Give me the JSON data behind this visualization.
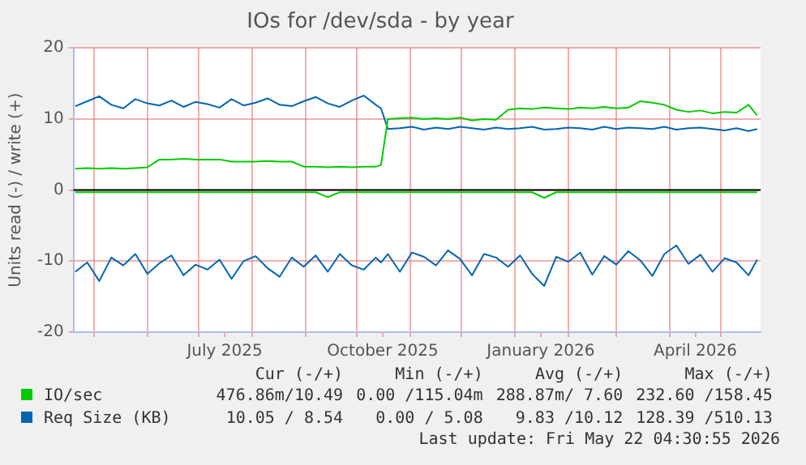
{
  "chart_data": {
    "type": "line",
    "title": "IOs for /dev/sda - by year",
    "ylabel": "Units read (-) / write (+)",
    "x": [
      "2025-04-20",
      "2025-04-27",
      "2025-05-04",
      "2025-05-11",
      "2025-05-18",
      "2025-05-25",
      "2025-06-01",
      "2025-06-08",
      "2025-06-15",
      "2025-06-22",
      "2025-06-29",
      "2025-07-06",
      "2025-07-13",
      "2025-07-20",
      "2025-07-27",
      "2025-08-03",
      "2025-08-10",
      "2025-08-17",
      "2025-08-24",
      "2025-08-31",
      "2025-09-07",
      "2025-09-14",
      "2025-09-21",
      "2025-09-28",
      "2025-10-05",
      "2025-10-12",
      "2025-10-15",
      "2025-10-19",
      "2025-10-26",
      "2025-11-02",
      "2025-11-09",
      "2025-11-16",
      "2025-11-23",
      "2025-11-30",
      "2025-12-07",
      "2025-12-14",
      "2025-12-21",
      "2025-12-28",
      "2026-01-04",
      "2026-01-11",
      "2026-01-18",
      "2026-01-25",
      "2026-02-01",
      "2026-02-08",
      "2026-02-15",
      "2026-02-22",
      "2026-03-01",
      "2026-03-08",
      "2026-03-15",
      "2026-03-22",
      "2026-03-29",
      "2026-04-05",
      "2026-04-12",
      "2026-04-19",
      "2026-04-26",
      "2026-05-03",
      "2026-05-10",
      "2026-05-17",
      "2026-05-22"
    ],
    "series": [
      {
        "name": "IO/sec",
        "color": "#00cc00",
        "values": [
          3.0,
          3.1,
          3.0,
          3.1,
          3.0,
          3.1,
          3.2,
          4.3,
          4.3,
          4.4,
          4.3,
          4.3,
          4.3,
          4.0,
          4.0,
          4.0,
          4.1,
          4.0,
          4.0,
          3.3,
          3.3,
          3.2,
          3.3,
          3.2,
          3.3,
          3.3,
          3.5,
          10.0,
          10.1,
          10.2,
          10.0,
          10.1,
          10.0,
          10.2,
          9.8,
          10.0,
          9.9,
          11.3,
          11.5,
          11.4,
          11.6,
          11.5,
          11.4,
          11.6,
          11.5,
          11.7,
          11.5,
          11.6,
          12.5,
          12.3,
          12.0,
          11.3,
          11.0,
          11.2,
          10.8,
          11.0,
          10.9,
          12.0,
          10.5
        ]
      },
      {
        "color": "#00cc00",
        "values": [
          -0.3,
          -0.3,
          -0.3,
          -0.3,
          -0.3,
          -0.3,
          -0.3,
          -0.3,
          -0.3,
          -0.3,
          -0.3,
          -0.3,
          -0.3,
          -0.3,
          -0.3,
          -0.3,
          -0.3,
          -0.3,
          -0.3,
          -0.3,
          -0.3,
          -1.0,
          -0.3,
          -0.3,
          -0.3,
          -0.3,
          -0.3,
          -0.3,
          -0.3,
          -0.3,
          -0.3,
          -0.3,
          -0.3,
          -0.3,
          -0.3,
          -0.3,
          -0.3,
          -0.3,
          -0.3,
          -0.3,
          -1.1,
          -0.3,
          -0.3,
          -0.3,
          -0.3,
          -0.3,
          -0.3,
          -0.3,
          -0.3,
          -0.3,
          -0.3,
          -0.3,
          -0.3,
          -0.3,
          -0.3,
          -0.3,
          -0.3,
          -0.3,
          -0.3
        ]
      },
      {
        "name": "Req Size (KB)",
        "color": "#0066b3",
        "values": [
          11.8,
          12.5,
          13.2,
          12.0,
          11.5,
          12.8,
          12.2,
          11.9,
          12.6,
          11.7,
          12.4,
          12.1,
          11.6,
          12.8,
          11.9,
          12.3,
          12.9,
          12.0,
          11.8,
          12.5,
          13.1,
          12.2,
          11.7,
          12.6,
          13.3,
          12.0,
          11.5,
          8.6,
          8.7,
          8.9,
          8.5,
          8.8,
          8.6,
          8.9,
          8.7,
          8.5,
          8.8,
          8.6,
          8.7,
          8.9,
          8.5,
          8.6,
          8.8,
          8.7,
          8.5,
          8.9,
          8.6,
          8.8,
          8.7,
          8.6,
          8.9,
          8.5,
          8.7,
          8.8,
          8.6,
          8.4,
          8.7,
          8.3,
          8.6
        ]
      },
      {
        "color": "#0066b3",
        "values": [
          -11.5,
          -10.2,
          -12.8,
          -9.5,
          -10.6,
          -9.0,
          -11.8,
          -10.3,
          -9.2,
          -12.0,
          -10.5,
          -11.2,
          -9.8,
          -12.5,
          -10.0,
          -9.3,
          -11.0,
          -12.2,
          -9.5,
          -10.8,
          -9.2,
          -11.5,
          -9.0,
          -10.6,
          -11.2,
          -9.5,
          -10.2,
          -9.0,
          -11.5,
          -8.8,
          -9.4,
          -10.6,
          -8.5,
          -9.7,
          -12.0,
          -9.0,
          -9.5,
          -10.8,
          -9.2,
          -11.8,
          -13.5,
          -9.4,
          -10.1,
          -8.8,
          -11.9,
          -9.3,
          -10.5,
          -8.6,
          -9.9,
          -12.1,
          -9.0,
          -7.8,
          -10.4,
          -9.1,
          -11.5,
          -9.6,
          -10.2,
          -12.0,
          -9.8
        ]
      }
    ],
    "xlim": [
      "2025-04-19",
      "2026-05-24"
    ],
    "xticks": [
      {
        "value": "2025-05-01",
        "label": null
      },
      {
        "value": "2025-06-01",
        "label": null
      },
      {
        "value": "2025-07-01",
        "label": null
      },
      {
        "value": "2025-07-16",
        "label": "July 2025"
      },
      {
        "value": "2025-08-01",
        "label": null
      },
      {
        "value": "2025-09-01",
        "label": null
      },
      {
        "value": "2025-10-01",
        "label": null
      },
      {
        "value": "2025-10-16",
        "label": "October 2025"
      },
      {
        "value": "2025-11-01",
        "label": null
      },
      {
        "value": "2025-12-01",
        "label": null
      },
      {
        "value": "2026-01-01",
        "label": null
      },
      {
        "value": "2026-01-16",
        "label": "January 2026"
      },
      {
        "value": "2026-02-01",
        "label": null
      },
      {
        "value": "2026-03-01",
        "label": null
      },
      {
        "value": "2026-04-01",
        "label": null
      },
      {
        "value": "2026-04-16",
        "label": "April 2026"
      },
      {
        "value": "2026-05-01",
        "label": null
      }
    ],
    "ylim": [
      -20,
      20
    ],
    "yticks": [
      -20,
      -10,
      0,
      10,
      20
    ],
    "ref_lines": [
      {
        "axis": "y",
        "value": 0,
        "color": "#000000"
      }
    ],
    "grid": true,
    "legend": "bottom",
    "marker": "none",
    "line_style": "solid",
    "annotations": [
      "Cur (-/+)",
      "Min (-/+)",
      "Avg (-/+)",
      "Max (-/+)",
      "476.86m/10.49",
      "0.00 /115.04m",
      "288.87m/ 7.60",
      "232.60 /158.45",
      "10.05 / 8.54",
      "0.00 / 5.08",
      "9.83 /10.12",
      "128.39 /510.13",
      "Last update: Fri May 22 04:30:55 2026"
    ]
  }
}
